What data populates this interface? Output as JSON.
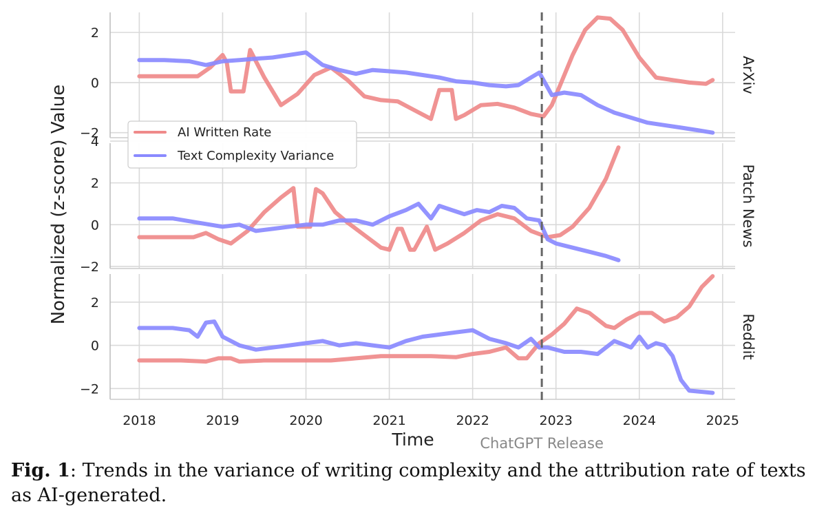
{
  "chart_data": {
    "type": "line",
    "ylabel": "Normalized (z-score) Value",
    "xlabel": "Time",
    "xlim": [
      2017.65,
      2025.15
    ],
    "xticks": [
      2018,
      2019,
      2020,
      2021,
      2022,
      2023,
      2024,
      2025
    ],
    "xtick_labels": [
      "2018",
      "2019",
      "2020",
      "2021",
      "2022",
      "2023",
      "2024",
      "2025"
    ],
    "grid": true,
    "legend": {
      "placement": "upper-left of top panel",
      "entries": [
        {
          "name": "AI Written Rate",
          "color": "#ef8a8a"
        },
        {
          "name": "Text Complexity Variance",
          "color": "#8a8aff"
        }
      ]
    },
    "annotation": {
      "x": 2022.83,
      "label": "ChatGPT Release",
      "style": "dashed vertical line",
      "color": "#666666"
    },
    "panels": [
      {
        "name": "ArXiv",
        "ylim": [
          -2.2,
          2.8
        ],
        "yticks": [
          -2,
          0,
          2
        ],
        "ytick_labels": [
          "−2",
          "0",
          "2"
        ],
        "series": [
          {
            "name": "AI Written Rate",
            "color": "#ef8a8a",
            "x": [
              2018.0,
              2018.7,
              2018.85,
              2019.0,
              2019.05,
              2019.1,
              2019.25,
              2019.33,
              2019.5,
              2019.7,
              2019.9,
              2020.1,
              2020.3,
              2020.5,
              2020.7,
              2020.9,
              2021.1,
              2021.3,
              2021.5,
              2021.6,
              2021.65,
              2021.75,
              2021.8,
              2021.9,
              2022.1,
              2022.3,
              2022.5,
              2022.7,
              2022.85,
              2022.95,
              2023.05,
              2023.2,
              2023.35,
              2023.5,
              2023.65,
              2023.8,
              2024.0,
              2024.2,
              2024.4,
              2024.6,
              2024.8,
              2024.88
            ],
            "y": [
              0.25,
              0.25,
              0.6,
              1.1,
              0.8,
              -0.35,
              -0.35,
              1.3,
              0.2,
              -0.9,
              -0.45,
              0.3,
              0.6,
              0.1,
              -0.55,
              -0.7,
              -0.75,
              -1.1,
              -1.45,
              -0.3,
              -0.3,
              -0.3,
              -1.45,
              -1.3,
              -0.9,
              -0.85,
              -1.0,
              -1.25,
              -1.35,
              -0.9,
              -0.1,
              1.1,
              2.1,
              2.6,
              2.55,
              2.1,
              1.0,
              0.2,
              0.1,
              0.0,
              -0.05,
              0.1
            ]
          },
          {
            "name": "Text Complexity Variance",
            "color": "#8a8aff",
            "x": [
              2018.0,
              2018.3,
              2018.6,
              2018.8,
              2019.0,
              2019.2,
              2019.4,
              2019.6,
              2019.8,
              2020.0,
              2020.2,
              2020.4,
              2020.6,
              2020.8,
              2021.0,
              2021.2,
              2021.4,
              2021.6,
              2021.8,
              2022.0,
              2022.2,
              2022.4,
              2022.55,
              2022.7,
              2022.8,
              2022.95,
              2023.1,
              2023.3,
              2023.5,
              2023.7,
              2023.9,
              2024.1,
              2024.3,
              2024.5,
              2024.7,
              2024.88
            ],
            "y": [
              0.9,
              0.9,
              0.85,
              0.7,
              0.85,
              0.9,
              0.95,
              1.0,
              1.1,
              1.2,
              0.7,
              0.5,
              0.35,
              0.5,
              0.45,
              0.4,
              0.3,
              0.2,
              0.05,
              0.0,
              -0.1,
              -0.15,
              -0.1,
              0.2,
              0.4,
              -0.5,
              -0.4,
              -0.5,
              -0.9,
              -1.2,
              -1.4,
              -1.6,
              -1.7,
              -1.8,
              -1.9,
              -2.0
            ]
          }
        ]
      },
      {
        "name": "Patch News",
        "ylim": [
          -2.1,
          3.9
        ],
        "yticks": [
          -2,
          0,
          2,
          4
        ],
        "ytick_labels": [
          "−2",
          "0",
          "2",
          "4"
        ],
        "series": [
          {
            "name": "AI Written Rate",
            "color": "#ef8a8a",
            "x": [
              2018.0,
              2018.65,
              2018.8,
              2018.95,
              2019.1,
              2019.3,
              2019.5,
              2019.7,
              2019.85,
              2019.9,
              2020.05,
              2020.12,
              2020.2,
              2020.35,
              2020.5,
              2020.7,
              2020.9,
              2021.0,
              2021.1,
              2021.15,
              2021.25,
              2021.3,
              2021.45,
              2021.55,
              2021.6,
              2021.7,
              2021.9,
              2022.1,
              2022.3,
              2022.5,
              2022.7,
              2022.9,
              2023.05,
              2023.2,
              2023.4,
              2023.6,
              2023.75
            ],
            "y": [
              -0.6,
              -0.6,
              -0.4,
              -0.7,
              -0.9,
              -0.3,
              0.6,
              1.3,
              1.75,
              -0.1,
              -0.1,
              1.7,
              1.5,
              0.6,
              0.1,
              -0.5,
              -1.1,
              -1.2,
              -0.2,
              -0.2,
              -1.2,
              -1.2,
              -0.1,
              -1.2,
              -1.1,
              -0.9,
              -0.4,
              0.2,
              0.5,
              0.3,
              -0.3,
              -0.6,
              -0.5,
              -0.1,
              0.8,
              2.2,
              3.7
            ]
          },
          {
            "name": "Text Complexity Variance",
            "color": "#8a8aff",
            "x": [
              2018.0,
              2018.4,
              2018.7,
              2019.0,
              2019.2,
              2019.4,
              2019.6,
              2019.8,
              2020.0,
              2020.2,
              2020.4,
              2020.6,
              2020.8,
              2021.0,
              2021.2,
              2021.35,
              2021.5,
              2021.6,
              2021.75,
              2021.9,
              2022.05,
              2022.2,
              2022.35,
              2022.5,
              2022.65,
              2022.8,
              2022.9,
              2023.0,
              2023.2,
              2023.4,
              2023.6,
              2023.75
            ],
            "y": [
              0.3,
              0.3,
              0.1,
              -0.1,
              0.0,
              -0.3,
              -0.2,
              -0.1,
              0.0,
              0.0,
              0.2,
              0.2,
              0.0,
              0.4,
              0.7,
              1.0,
              0.3,
              0.9,
              0.7,
              0.5,
              0.7,
              0.6,
              0.9,
              0.8,
              0.3,
              0.2,
              -0.7,
              -0.9,
              -1.1,
              -1.3,
              -1.5,
              -1.7
            ]
          }
        ]
      },
      {
        "name": "Reddit",
        "ylim": [
          -2.5,
          3.3
        ],
        "yticks": [
          -2,
          0,
          2
        ],
        "ytick_labels": [
          "−2",
          "0",
          "2"
        ],
        "series": [
          {
            "name": "AI Written Rate",
            "color": "#ef8a8a",
            "x": [
              2018.0,
              2018.5,
              2018.8,
              2018.95,
              2019.1,
              2019.2,
              2019.5,
              2020.0,
              2020.3,
              2020.6,
              2020.9,
              2021.2,
              2021.5,
              2021.8,
              2022.0,
              2022.2,
              2022.4,
              2022.55,
              2022.65,
              2022.8,
              2022.95,
              2023.1,
              2023.25,
              2023.4,
              2023.5,
              2023.6,
              2023.7,
              2023.85,
              2024.0,
              2024.15,
              2024.3,
              2024.45,
              2024.6,
              2024.75,
              2024.88
            ],
            "y": [
              -0.7,
              -0.7,
              -0.75,
              -0.6,
              -0.6,
              -0.75,
              -0.7,
              -0.7,
              -0.7,
              -0.6,
              -0.5,
              -0.5,
              -0.5,
              -0.55,
              -0.4,
              -0.3,
              -0.1,
              -0.6,
              -0.6,
              0.1,
              0.5,
              1.0,
              1.7,
              1.5,
              1.2,
              0.9,
              0.8,
              1.2,
              1.5,
              1.5,
              1.1,
              1.3,
              1.8,
              2.7,
              3.2
            ]
          },
          {
            "name": "Text Complexity Variance",
            "color": "#8a8aff",
            "x": [
              2018.0,
              2018.4,
              2018.6,
              2018.7,
              2018.8,
              2018.9,
              2019.0,
              2019.2,
              2019.4,
              2019.6,
              2019.8,
              2020.0,
              2020.2,
              2020.4,
              2020.6,
              2020.8,
              2021.0,
              2021.2,
              2021.4,
              2021.6,
              2021.8,
              2022.0,
              2022.2,
              2022.4,
              2022.55,
              2022.7,
              2022.8,
              2022.9,
              2023.1,
              2023.3,
              2023.5,
              2023.7,
              2023.9,
              2024.0,
              2024.1,
              2024.2,
              2024.3,
              2024.4,
              2024.5,
              2024.6,
              2024.88
            ],
            "y": [
              0.8,
              0.8,
              0.7,
              0.4,
              1.05,
              1.1,
              0.4,
              0.0,
              -0.2,
              -0.1,
              0.0,
              0.1,
              0.2,
              0.0,
              0.1,
              0.0,
              -0.1,
              0.2,
              0.4,
              0.5,
              0.6,
              0.7,
              0.3,
              0.1,
              -0.1,
              0.3,
              -0.1,
              -0.1,
              -0.3,
              -0.3,
              -0.4,
              0.2,
              -0.1,
              0.4,
              -0.1,
              0.1,
              0.0,
              -0.5,
              -1.6,
              -2.1,
              -2.2
            ]
          }
        ]
      }
    ]
  },
  "caption": {
    "label": "Fig. 1",
    "text": ": Trends in the variance of writing complexity and the attribution rate of texts as AI-generated."
  }
}
